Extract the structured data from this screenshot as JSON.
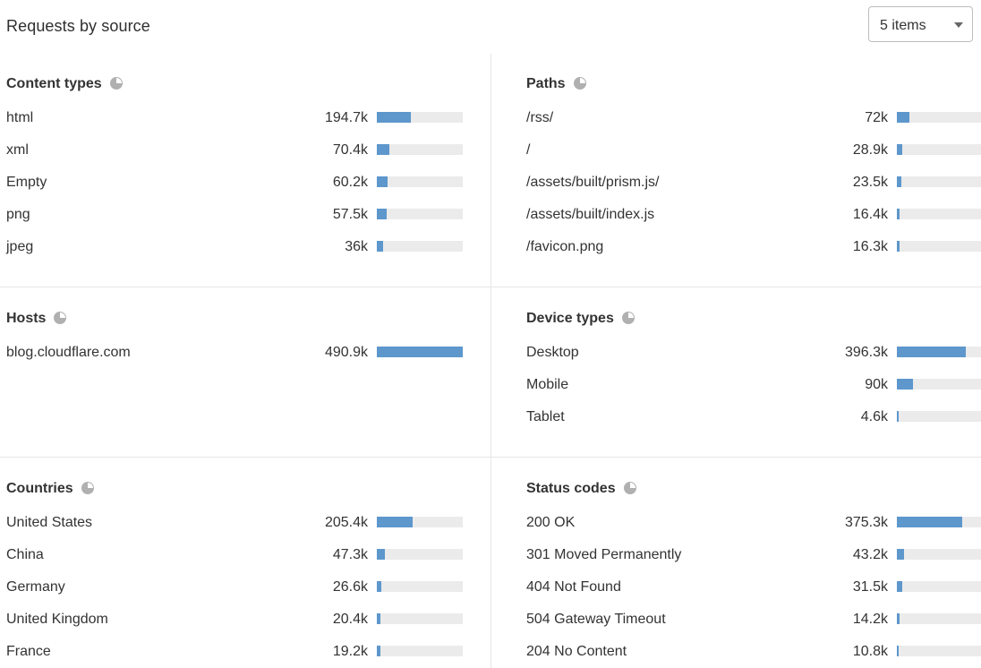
{
  "header": {
    "title": "Requests by source",
    "items_select": {
      "value": "5 items"
    }
  },
  "panels": [
    {
      "title": "Content types",
      "icon": "pie-chart-icon",
      "rows": [
        {
          "label": "html",
          "value": "194.7k",
          "fraction": 0.397
        },
        {
          "label": "xml",
          "value": "70.4k",
          "fraction": 0.143
        },
        {
          "label": "Empty",
          "value": "60.2k",
          "fraction": 0.123
        },
        {
          "label": "png",
          "value": "57.5k",
          "fraction": 0.117
        },
        {
          "label": "jpeg",
          "value": "36k",
          "fraction": 0.073
        }
      ]
    },
    {
      "title": "Paths",
      "icon": "pie-chart-icon",
      "rows": [
        {
          "label": "/rss/",
          "value": "72k",
          "fraction": 0.147
        },
        {
          "label": "/",
          "value": "28.9k",
          "fraction": 0.059
        },
        {
          "label": "/assets/built/prism.js/",
          "value": "23.5k",
          "fraction": 0.048
        },
        {
          "label": "/assets/built/index.js",
          "value": "16.4k",
          "fraction": 0.033
        },
        {
          "label": "/favicon.png",
          "value": "16.3k",
          "fraction": 0.033
        }
      ]
    },
    {
      "title": "Hosts",
      "icon": "pie-chart-icon",
      "rows": [
        {
          "label": "blog.cloudflare.com",
          "value": "490.9k",
          "fraction": 1.0
        }
      ]
    },
    {
      "title": "Device types",
      "icon": "pie-chart-icon",
      "rows": [
        {
          "label": "Desktop",
          "value": "396.3k",
          "fraction": 0.807
        },
        {
          "label": "Mobile",
          "value": "90k",
          "fraction": 0.183
        },
        {
          "label": "Tablet",
          "value": "4.6k",
          "fraction": 0.009
        }
      ]
    },
    {
      "title": "Countries",
      "icon": "pie-chart-icon",
      "rows": [
        {
          "label": "United States",
          "value": "205.4k",
          "fraction": 0.418
        },
        {
          "label": "China",
          "value": "47.3k",
          "fraction": 0.096
        },
        {
          "label": "Germany",
          "value": "26.6k",
          "fraction": 0.054
        },
        {
          "label": "United Kingdom",
          "value": "20.4k",
          "fraction": 0.042
        },
        {
          "label": "France",
          "value": "19.2k",
          "fraction": 0.039
        }
      ]
    },
    {
      "title": "Status codes",
      "icon": "pie-chart-icon",
      "rows": [
        {
          "label": "200 OK",
          "value": "375.3k",
          "fraction": 0.765
        },
        {
          "label": "301 Moved Permanently",
          "value": "43.2k",
          "fraction": 0.088
        },
        {
          "label": "404 Not Found",
          "value": "31.5k",
          "fraction": 0.064
        },
        {
          "label": "504 Gateway Timeout",
          "value": "14.2k",
          "fraction": 0.029
        },
        {
          "label": "204 No Content",
          "value": "10.8k",
          "fraction": 0.022
        }
      ]
    }
  ],
  "colors": {
    "bar_fill": "#5d97cc",
    "bar_track": "#ebebeb"
  }
}
